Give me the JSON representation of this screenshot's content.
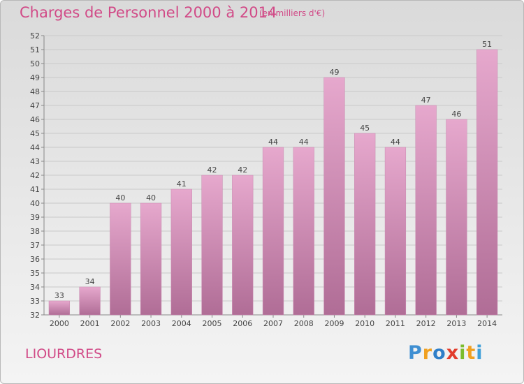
{
  "chart_data": {
    "type": "bar",
    "title": "Charges de Personnel 2000 à 2014",
    "subtitle": "(en milliers d'€)",
    "xlabel": "",
    "ylabel": "",
    "categories": [
      "2000",
      "2001",
      "2002",
      "2003",
      "2004",
      "2005",
      "2006",
      "2007",
      "2008",
      "2009",
      "2010",
      "2011",
      "2012",
      "2013",
      "2014"
    ],
    "values": [
      33,
      34,
      40,
      40,
      41,
      42,
      42,
      44,
      44,
      49,
      45,
      44,
      47,
      46,
      51
    ],
    "ylim": [
      32,
      52
    ],
    "yticks": [
      32,
      33,
      34,
      35,
      36,
      37,
      38,
      39,
      40,
      41,
      42,
      43,
      44,
      45,
      46,
      47,
      48,
      49,
      50,
      51,
      52
    ],
    "grid": true,
    "bar_color_top": "#e6a8cd",
    "bar_color_bottom": "#b06d96"
  },
  "commune": "LIOURDRES",
  "logo": {
    "letters": [
      "P",
      "r",
      "o",
      "x",
      "i",
      "t",
      "i"
    ],
    "colors": [
      "#3f8fd2",
      "#f0a020",
      "#2f7fc8",
      "#e23c2c",
      "#7cbc2c",
      "#f0a020",
      "#3f9fd8"
    ]
  }
}
